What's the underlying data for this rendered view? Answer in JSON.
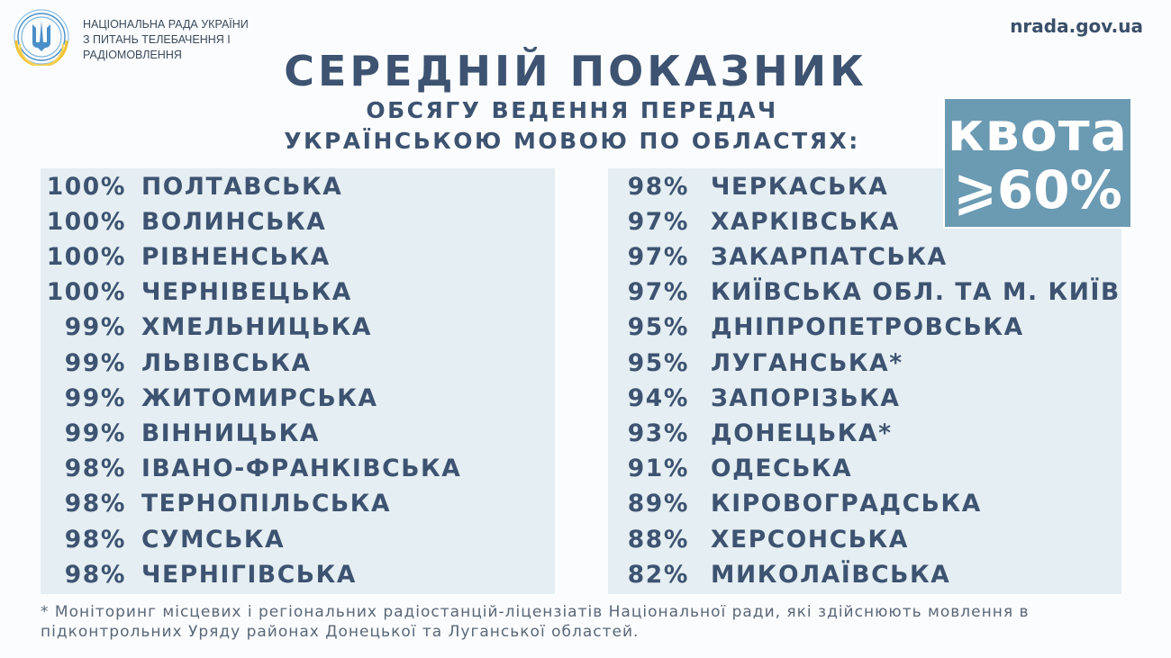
{
  "header": {
    "org_lines": [
      "НАЦІОНАЛЬНА РАДА УКРАЇНИ",
      "З ПИТАНЬ ТЕЛЕБАЧЕННЯ І",
      "РАДІОМОВЛЕННЯ"
    ],
    "site": "nrada.gov.ua",
    "logo_icon": "trident-emblem-icon"
  },
  "title": "СЕРЕДНІЙ ПОКАЗНИК",
  "subtitle_lines": [
    "ОБСЯГУ ВЕДЕННЯ ПЕРЕДАЧ",
    "УКРАЇНСЬКОЮ МОВОЮ ПО ОБЛАСТЯХ:"
  ],
  "quota": {
    "label": "квота",
    "value": "⩾60%"
  },
  "left_list": [
    {
      "pct": "100%",
      "name": "ПОЛТАВСЬКА"
    },
    {
      "pct": "100%",
      "name": "ВОЛИНСЬКА"
    },
    {
      "pct": "100%",
      "name": "РІВНЕНСЬКА"
    },
    {
      "pct": "100%",
      "name": "ЧЕРНІВЕЦЬКА"
    },
    {
      "pct": "99%",
      "name": "ХМЕЛЬНИЦЬКА"
    },
    {
      "pct": "99%",
      "name": "ЛЬВІВСЬКА"
    },
    {
      "pct": "99%",
      "name": "ЖИТОМИРСЬКА"
    },
    {
      "pct": "99%",
      "name": "ВІННИЦЬКА"
    },
    {
      "pct": "98%",
      "name": "ІВАНО-ФРАНКІВСЬКА"
    },
    {
      "pct": "98%",
      "name": "ТЕРНОПІЛЬСЬКА"
    },
    {
      "pct": "98%",
      "name": "СУМСЬКА"
    },
    {
      "pct": "98%",
      "name": "ЧЕРНІГІВСЬКА"
    }
  ],
  "right_list": [
    {
      "pct": "98%",
      "name": "ЧЕРКАСЬКА"
    },
    {
      "pct": "97%",
      "name": "ХАРКІВСЬКА"
    },
    {
      "pct": "97%",
      "name": "ЗАКАРПАТСЬКА"
    },
    {
      "pct": "97%",
      "name": "КИЇВСЬКА ОБЛ. ТА М. КИЇВ"
    },
    {
      "pct": "95%",
      "name": "ДНІПРОПЕТРОВСЬКА"
    },
    {
      "pct": "95%",
      "name": "ЛУГАНСЬКА*"
    },
    {
      "pct": "94%",
      "name": "ЗАПОРІЗЬКА"
    },
    {
      "pct": "93%",
      "name": "ДОНЕЦЬКА*"
    },
    {
      "pct": "91%",
      "name": "ОДЕСЬКА"
    },
    {
      "pct": "89%",
      "name": "КІРОВОГРАДСЬКА"
    },
    {
      "pct": "88%",
      "name": "ХЕРСОНСЬКА"
    },
    {
      "pct": "82%",
      "name": "МИКОЛАЇВСЬКА"
    }
  ],
  "footnote": "* Моніторинг місцевих і регіональних радіостанцій-ліцензіатів Національної ради, які здійснюють мовлення в підконтрольних Уряду районах Донецької та Луганської областей.",
  "colors": {
    "text": "#3d5371",
    "panel": "#e5eef2",
    "quota_bg": "#6b9ab3",
    "logo_blue": "#4a8fc9",
    "logo_yellow": "#f2c230"
  }
}
